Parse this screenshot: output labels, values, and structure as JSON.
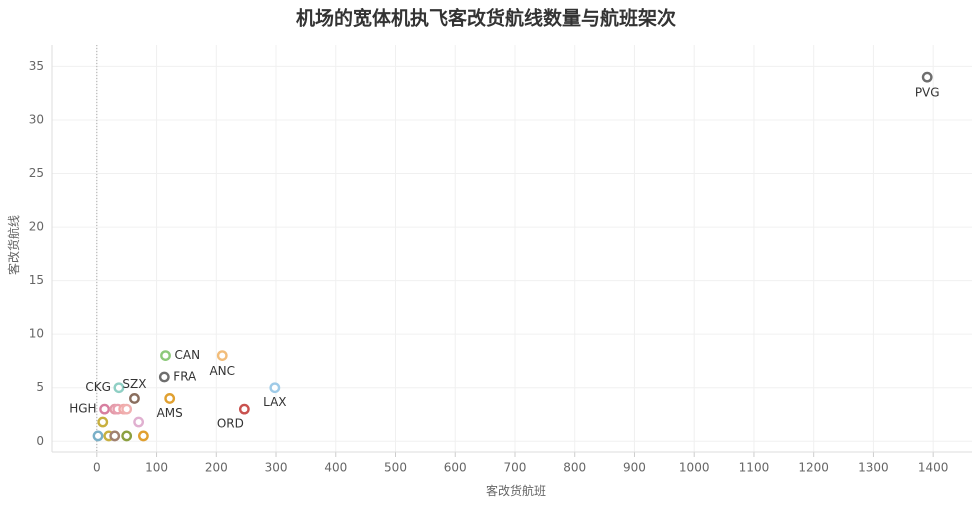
{
  "chart_data": {
    "type": "scatter",
    "title": "机场的宽体机执飞客改货航线数量与航班架次",
    "xlabel": "客改货航班",
    "ylabel": "客改货航线",
    "x": [
      1390,
      115,
      210,
      113,
      37,
      298,
      63,
      122,
      13,
      247,
      30,
      35,
      45,
      50,
      70,
      10,
      2,
      20,
      30,
      50,
      78
    ],
    "values": [
      34,
      8,
      8,
      6,
      5,
      5,
      4,
      4,
      3,
      3,
      3,
      3,
      3,
      3,
      1.8,
      1.8,
      0.5,
      0.5,
      0.5,
      0.5,
      0.5
    ],
    "labels": [
      "PVG",
      "CAN",
      "ANC",
      "FRA",
      "CKG",
      "LAX",
      "SZX",
      "AMS",
      "HGH",
      "ORD",
      null,
      null,
      null,
      null,
      null,
      null,
      null,
      null,
      null,
      null,
      null
    ],
    "colors": [
      "#6e6e6e",
      "#8cc97a",
      "#f2bd7a",
      "#6e6e6e",
      "#8fcfc4",
      "#9fcbe8",
      "#8a6e5e",
      "#e0a030",
      "#d77fa0",
      "#c9524f",
      "#e39aa8",
      "#e8a0b0",
      "#f0a8a8",
      "#f0b0b0",
      "#e0b0d0",
      "#c8b040",
      "#7ab0c8",
      "#c8b040",
      "#a08070",
      "#8ca040",
      "#e0a030"
    ],
    "xlim": [
      -75,
      1465
    ],
    "ylim": [
      -1,
      37
    ],
    "xticks": [
      0,
      100,
      200,
      300,
      400,
      500,
      600,
      700,
      800,
      900,
      1000,
      1100,
      1200,
      1300,
      1400
    ],
    "yticks": [
      0,
      5,
      10,
      15,
      20,
      25,
      30,
      35
    ],
    "grid": true
  }
}
